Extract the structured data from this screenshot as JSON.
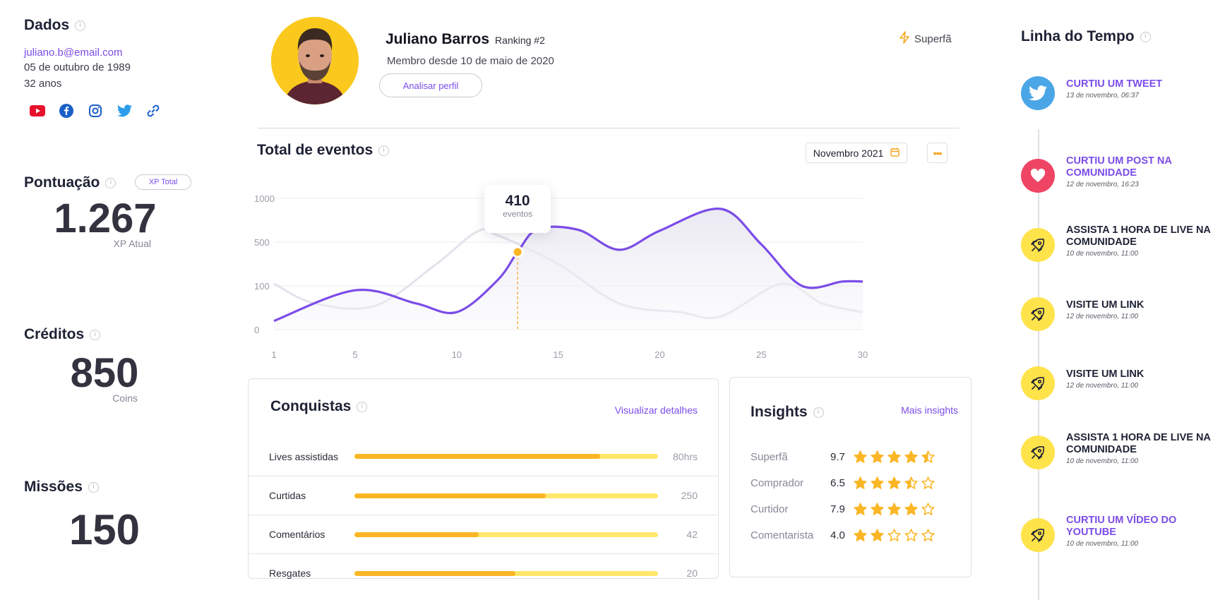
{
  "dados": {
    "title": "Dados",
    "email": "juliano.b@email.com",
    "birthdate": "05 de outubro de 1989",
    "age": "32 anos",
    "socials": [
      "youtube-icon",
      "facebook-icon",
      "instagram-icon",
      "twitter-icon",
      "link-icon"
    ]
  },
  "pontuacao": {
    "title": "Pontuação",
    "pill": "XP Total",
    "value": "1.267",
    "sub": "XP Atual"
  },
  "creditos": {
    "title": "Créditos",
    "value": "850",
    "sub": "Coins"
  },
  "missoes": {
    "title": "Missões",
    "value": "150"
  },
  "profile": {
    "name": "Juliano Barros",
    "ranking": "Ranking #2",
    "since": "Membro desde 10 de maio de 2020",
    "analyze_button": "Analisar perfil",
    "badge": "Superfã"
  },
  "events": {
    "title": "Total de eventos",
    "date_filter": "Novembro 2021",
    "tooltip_value": "410",
    "tooltip_label": "eventos"
  },
  "chart_data": {
    "type": "area",
    "title": "Total de eventos",
    "y_ticks": [
      "1000",
      "500",
      "100",
      "0"
    ],
    "x_ticks": [
      "1",
      "5",
      "10",
      "15",
      "20",
      "25",
      "30"
    ],
    "xlim": [
      1,
      30
    ],
    "y_levels": [
      0,
      100,
      500,
      1000
    ],
    "highlight": {
      "x": 13,
      "value": 410,
      "label": "eventos"
    },
    "series": [
      {
        "name": "current",
        "x": [
          1,
          5,
          8,
          10,
          12,
          13,
          14,
          16,
          18,
          20,
          23,
          25,
          27,
          29,
          30
        ],
        "values": [
          20,
          90,
          60,
          40,
          150,
          410,
          650,
          640,
          430,
          630,
          880,
          480,
          100,
          140,
          140
        ]
      },
      {
        "name": "previous",
        "x": [
          1,
          3,
          6,
          9,
          11,
          12,
          15,
          18,
          21,
          23,
          26,
          28,
          30
        ],
        "values": [
          120,
          60,
          55,
          300,
          620,
          580,
          300,
          60,
          40,
          30,
          120,
          60,
          40
        ]
      }
    ]
  },
  "conquistas": {
    "title": "Conquistas",
    "link": "Visualizar detalhes",
    "rows": [
      {
        "label": "Lives assistidas",
        "value": "80hrs",
        "fraction": 0.81
      },
      {
        "label": "Curtidas",
        "value": "250",
        "fraction": 0.63
      },
      {
        "label": "Comentários",
        "value": "42",
        "fraction": 0.41
      },
      {
        "label": "Resgates",
        "value": "20",
        "fraction": 0.53
      }
    ]
  },
  "insights": {
    "title": "Insights",
    "link": "Mais insights",
    "rows": [
      {
        "label": "Superfã",
        "score": "9.7",
        "stars": 4.5
      },
      {
        "label": "Comprador",
        "score": "6.5",
        "stars": 3.5
      },
      {
        "label": "Curtidor",
        "score": "7.9",
        "stars": 4
      },
      {
        "label": "Comentarista",
        "score": "4.0",
        "stars": 2
      }
    ]
  },
  "timeline": {
    "title": "Linha do Tempo",
    "items": [
      {
        "label": "CURTIU UM TWEET",
        "time": "13 de novembro, 06:37",
        "icon": "twitter-icon",
        "color": "#4aa6e6",
        "accent": true
      },
      {
        "label": "CURTIU UM POST NA COMUNIDADE",
        "time": "12 de novembro, 16:23",
        "icon": "heart-icon",
        "color": "#ef4565",
        "accent": true
      },
      {
        "label": "ASSISTA 1 HORA DE LIVE NA COMUNIDADE",
        "time": "10 de novembro, 11:00",
        "icon": "rocket-icon",
        "color": "#ffe34a",
        "accent": false
      },
      {
        "label": "VISITE UM LINK",
        "time": "12 de novembro, 11:00",
        "icon": "rocket-icon",
        "color": "#ffe34a",
        "accent": false
      },
      {
        "label": "VISITE UM LINK",
        "time": "12 de novembro, 11:00",
        "icon": "rocket-icon",
        "color": "#ffe34a",
        "accent": false
      },
      {
        "label": "ASSISTA 1 HORA DE LIVE NA COMUNIDADE",
        "time": "10 de novembro, 11:00",
        "icon": "rocket-icon",
        "color": "#ffe34a",
        "accent": false
      },
      {
        "label": "CURTIU UM VÍDEO DO YOUTUBE",
        "time": "10 de novembro, 11:00",
        "icon": "rocket-icon",
        "color": "#ffe34a",
        "accent": true
      }
    ]
  },
  "colors": {
    "accent": "#7b4ce8",
    "bar_fill": "#fbb626",
    "bar_track": "#ffe76a",
    "star": "#fbb626"
  }
}
